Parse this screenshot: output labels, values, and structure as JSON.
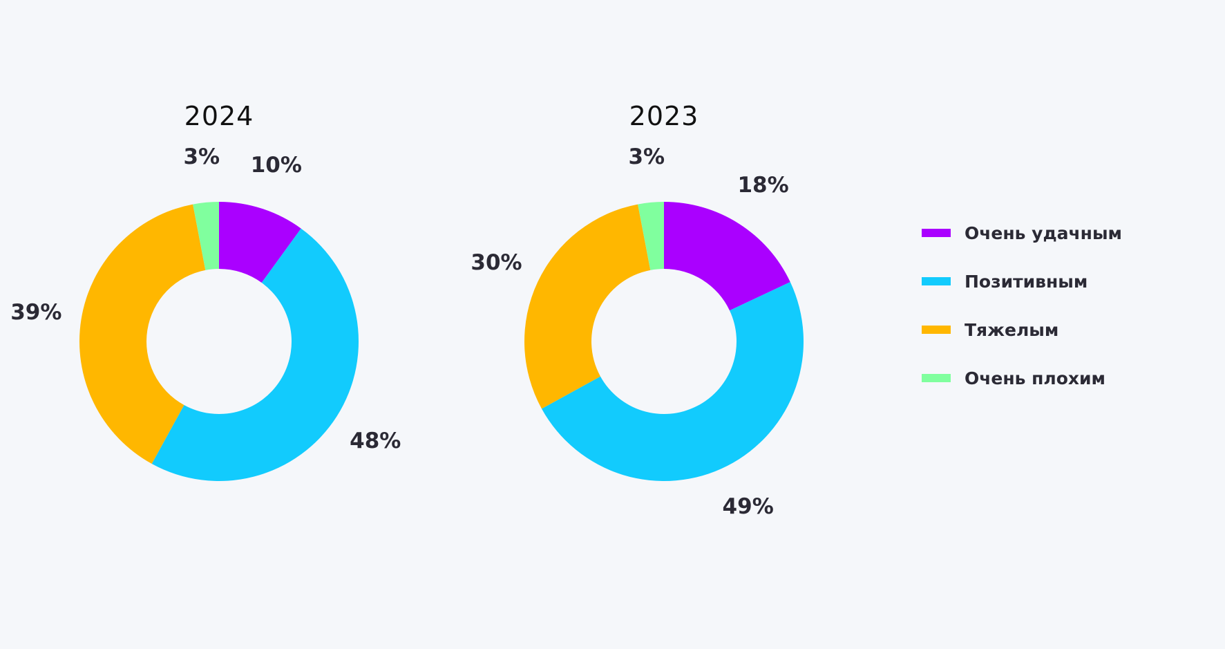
{
  "chart_data": [
    {
      "type": "pie",
      "title": "2024",
      "categories": [
        "Очень удачным",
        "Позитивным",
        "Тяжелым",
        "Очень плохим"
      ],
      "values": [
        10,
        48,
        39,
        3
      ],
      "labels": [
        "10%",
        "48%",
        "39%",
        "3%"
      ]
    },
    {
      "type": "pie",
      "title": "2023",
      "categories": [
        "Очень удачным",
        "Позитивным",
        "Тяжелым",
        "Очень плохим"
      ],
      "values": [
        18,
        49,
        30,
        3
      ],
      "labels": [
        "18%",
        "49%",
        "30%",
        "3%"
      ]
    }
  ],
  "legend": {
    "position": "right",
    "items": [
      {
        "label": "Очень удачным",
        "color": "#aa00ff"
      },
      {
        "label": "Позитивным",
        "color": "#12cbfd"
      },
      {
        "label": "Тяжелым",
        "color": "#ffb700"
      },
      {
        "label": "Очень плохим",
        "color": "#80ff9e"
      }
    ]
  }
}
